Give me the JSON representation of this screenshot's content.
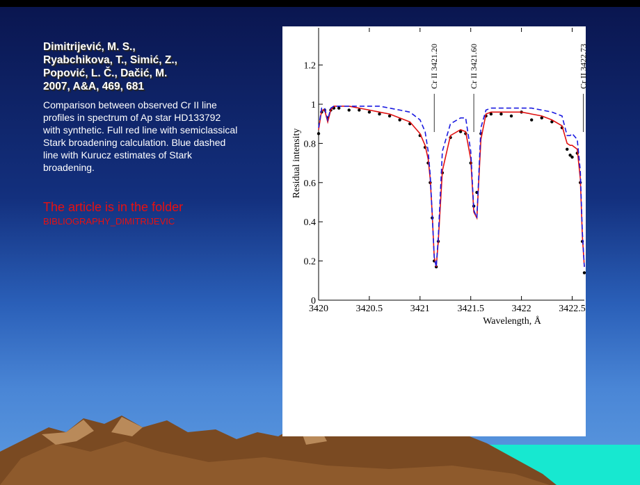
{
  "slide": {
    "reference": [
      "Dimitrijević, M. S.,",
      "Ryabchikova, T., Simić, Z.,",
      "Popović, L. Č., Dačić, M.",
      "2007, A&A, 469, 681"
    ],
    "description": "Comparison between observed Cr II line profiles in spectrum of Ap star HD133792 with synthetic. Full red line with semiclassical Stark broadening calculation. Blue dashed line with Kurucz estimates of Stark broadening.",
    "note": [
      "The article is in the folder",
      "BIBLIOGRAPHY_DIMITRIJEVIC"
    ]
  },
  "chart_data": {
    "type": "line",
    "x_label": "Wavelength, Å",
    "y_label": "Residual intensity",
    "xlim": [
      3420,
      3422.62
    ],
    "ylim": [
      0,
      1.39
    ],
    "xticks": [
      3420,
      3420.5,
      3421,
      3421.5,
      3422,
      3422.5
    ],
    "yticks": [
      0,
      0.2,
      0.4,
      0.6,
      0.8,
      1,
      1.2
    ],
    "annotations": [
      {
        "text": "Cr II 3421.20",
        "x": 3421.14
      },
      {
        "text": "Cr II 3421.60",
        "x": 3421.53
      },
      {
        "text": "Cr II 3422.73",
        "x": 3422.61
      }
    ],
    "x": [
      3420.0,
      3420.03,
      3420.06,
      3420.09,
      3420.12,
      3420.15,
      3420.2,
      3420.3,
      3420.4,
      3420.5,
      3420.6,
      3420.7,
      3420.8,
      3420.9,
      3421.0,
      3421.05,
      3421.08,
      3421.1,
      3421.12,
      3421.14,
      3421.16,
      3421.18,
      3421.22,
      3421.3,
      3421.4,
      3421.45,
      3421.5,
      3421.53,
      3421.56,
      3421.6,
      3421.65,
      3421.7,
      3421.8,
      3421.9,
      3422.0,
      3422.1,
      3422.2,
      3422.3,
      3422.4,
      3422.45,
      3422.48,
      3422.5,
      3422.55,
      3422.58,
      3422.6,
      3422.62
    ],
    "series": [
      {
        "color": "#000000",
        "style": "points",
        "values": [
          0.85,
          0.96,
          0.97,
          0.93,
          0.97,
          0.98,
          0.98,
          0.97,
          0.97,
          0.96,
          0.95,
          0.94,
          0.92,
          0.9,
          0.84,
          0.78,
          0.7,
          0.6,
          0.42,
          0.2,
          0.17,
          0.3,
          0.65,
          0.83,
          0.86,
          0.85,
          0.7,
          0.48,
          0.55,
          0.85,
          0.94,
          0.95,
          0.95,
          0.94,
          0.96,
          0.92,
          0.93,
          0.91,
          0.88,
          0.77,
          0.74,
          0.73,
          0.75,
          0.6,
          0.3,
          0.14
        ]
      },
      {
        "color": "#e01010",
        "style": "solid",
        "values": [
          0.87,
          0.97,
          0.97,
          0.91,
          0.97,
          0.99,
          0.99,
          0.99,
          0.98,
          0.97,
          0.96,
          0.95,
          0.93,
          0.91,
          0.85,
          0.79,
          0.72,
          0.62,
          0.44,
          0.22,
          0.17,
          0.3,
          0.66,
          0.84,
          0.87,
          0.86,
          0.72,
          0.45,
          0.42,
          0.82,
          0.95,
          0.96,
          0.96,
          0.96,
          0.96,
          0.95,
          0.94,
          0.92,
          0.89,
          0.8,
          0.79,
          0.79,
          0.77,
          0.62,
          0.33,
          0.17
        ]
      },
      {
        "color": "#1a1ae0",
        "style": "dashed",
        "values": [
          0.88,
          0.98,
          0.98,
          0.92,
          0.98,
          0.99,
          0.99,
          0.99,
          0.99,
          0.99,
          0.99,
          0.98,
          0.97,
          0.96,
          0.92,
          0.86,
          0.76,
          0.64,
          0.44,
          0.22,
          0.17,
          0.32,
          0.76,
          0.9,
          0.93,
          0.93,
          0.76,
          0.46,
          0.42,
          0.88,
          0.97,
          0.98,
          0.98,
          0.98,
          0.98,
          0.98,
          0.97,
          0.96,
          0.94,
          0.84,
          0.84,
          0.85,
          0.82,
          0.66,
          0.35,
          0.17
        ]
      }
    ]
  }
}
